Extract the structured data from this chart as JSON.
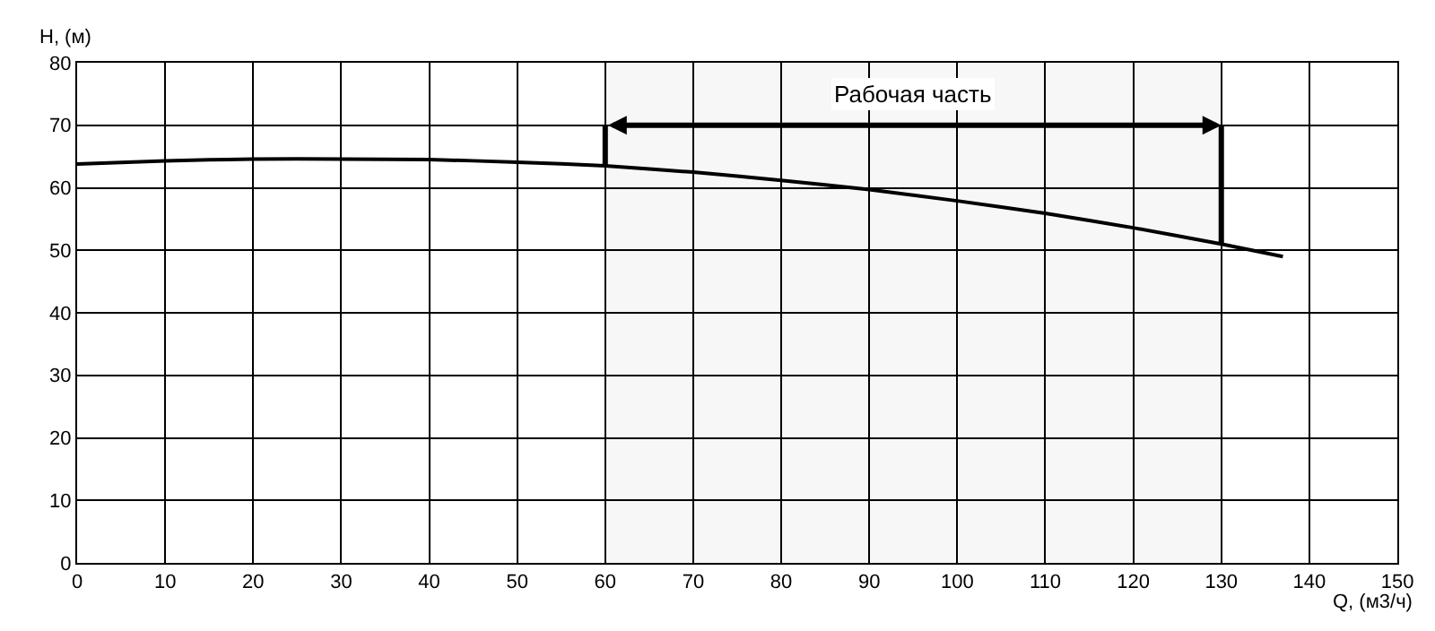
{
  "chart_data": {
    "type": "line",
    "xlabel": "Q, (м3/ч)",
    "ylabel": "H, (м)",
    "x": [
      0,
      10,
      20,
      30,
      40,
      50,
      60,
      70,
      80,
      90,
      100,
      110,
      120,
      130,
      137
    ],
    "series": [
      {
        "color": "#000000",
        "values": [
          63.8,
          64.3,
          64.6,
          64.6,
          64.5,
          64.1,
          63.5,
          62.5,
          61.2,
          59.7,
          57.9,
          55.9,
          53.6,
          51.0,
          49.0
        ]
      }
    ],
    "xlim": [
      0,
      150
    ],
    "xticks": [
      0,
      10,
      20,
      30,
      40,
      50,
      60,
      70,
      80,
      90,
      100,
      110,
      120,
      130,
      140,
      150
    ],
    "ylim": [
      0,
      80
    ],
    "yticks": [
      0,
      10,
      20,
      30,
      40,
      50,
      60,
      70,
      80
    ],
    "bands": [
      {
        "axis": "x",
        "from": 60,
        "to": 130,
        "label": "Рабочая часть",
        "color": "#000000"
      }
    ],
    "grid": true,
    "marker": "none",
    "line_style": "solid"
  }
}
